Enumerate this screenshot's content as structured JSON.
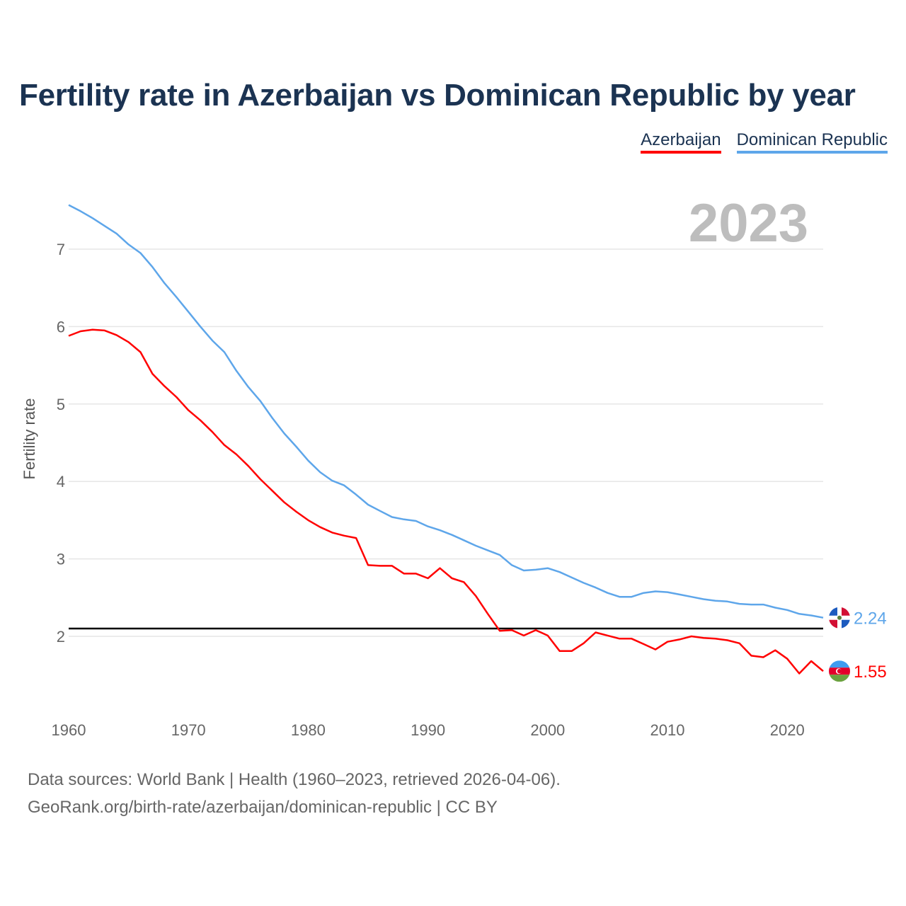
{
  "chart_data": {
    "type": "line",
    "title": "Fertility rate in Azerbaijan vs Dominican Republic by year",
    "xlabel": "",
    "ylabel": "Fertility rate",
    "current_year_label": "2023",
    "xlim": [
      1960,
      2023
    ],
    "ylim": [
      1.2,
      7.6
    ],
    "x_ticks": [
      1960,
      1970,
      1980,
      1990,
      2000,
      2010,
      2020
    ],
    "y_ticks": [
      2,
      3,
      4,
      5,
      6,
      7
    ],
    "grid": true,
    "legend_position": "top-right",
    "reference_line": {
      "value": 2.1,
      "color": "#000000"
    },
    "x": [
      1960,
      1961,
      1962,
      1963,
      1964,
      1965,
      1966,
      1967,
      1968,
      1969,
      1970,
      1971,
      1972,
      1973,
      1974,
      1975,
      1976,
      1977,
      1978,
      1979,
      1980,
      1981,
      1982,
      1983,
      1984,
      1985,
      1986,
      1987,
      1988,
      1989,
      1990,
      1991,
      1992,
      1993,
      1994,
      1995,
      1996,
      1997,
      1998,
      1999,
      2000,
      2001,
      2002,
      2003,
      2004,
      2005,
      2006,
      2007,
      2008,
      2009,
      2010,
      2011,
      2012,
      2013,
      2014,
      2015,
      2016,
      2017,
      2018,
      2019,
      2020,
      2021,
      2022,
      2023
    ],
    "series": [
      {
        "name": "Azerbaijan",
        "color": "#ff0000",
        "end_label": "1.55",
        "values": [
          5.88,
          5.94,
          5.96,
          5.95,
          5.89,
          5.8,
          5.67,
          5.39,
          5.23,
          5.09,
          4.92,
          4.79,
          4.64,
          4.47,
          4.35,
          4.2,
          4.03,
          3.88,
          3.73,
          3.61,
          3.5,
          3.41,
          3.34,
          3.3,
          3.27,
          2.92,
          2.91,
          2.91,
          2.81,
          2.81,
          2.75,
          2.88,
          2.75,
          2.7,
          2.52,
          2.29,
          2.07,
          2.08,
          2.01,
          2.08,
          2.01,
          1.81,
          1.81,
          1.91,
          2.05,
          2.01,
          1.97,
          1.97,
          1.9,
          1.83,
          1.93,
          1.96,
          2.0,
          1.98,
          1.97,
          1.95,
          1.91,
          1.75,
          1.73,
          1.82,
          1.71,
          1.52,
          1.68,
          1.55
        ]
      },
      {
        "name": "Dominican Republic",
        "color": "#5ea6ea",
        "end_label": "2.24",
        "values": [
          7.57,
          7.49,
          7.4,
          7.3,
          7.2,
          7.06,
          6.95,
          6.77,
          6.56,
          6.38,
          6.19,
          6.0,
          5.82,
          5.67,
          5.43,
          5.22,
          5.04,
          4.82,
          4.62,
          4.45,
          4.27,
          4.12,
          4.01,
          3.95,
          3.83,
          3.7,
          3.62,
          3.54,
          3.51,
          3.49,
          3.42,
          3.37,
          3.31,
          3.24,
          3.17,
          3.11,
          3.05,
          2.92,
          2.85,
          2.86,
          2.88,
          2.83,
          2.76,
          2.69,
          2.63,
          2.56,
          2.51,
          2.51,
          2.56,
          2.58,
          2.57,
          2.54,
          2.51,
          2.48,
          2.46,
          2.45,
          2.42,
          2.41,
          2.41,
          2.37,
          2.34,
          2.29,
          2.27,
          2.24
        ]
      }
    ]
  },
  "footer": {
    "line1": "Data sources: World Bank | Health (1960–2023, retrieved 2026-04-06).",
    "line2": "GeoRank.org/birth-rate/azerbaijan/dominican-republic | CC BY"
  }
}
